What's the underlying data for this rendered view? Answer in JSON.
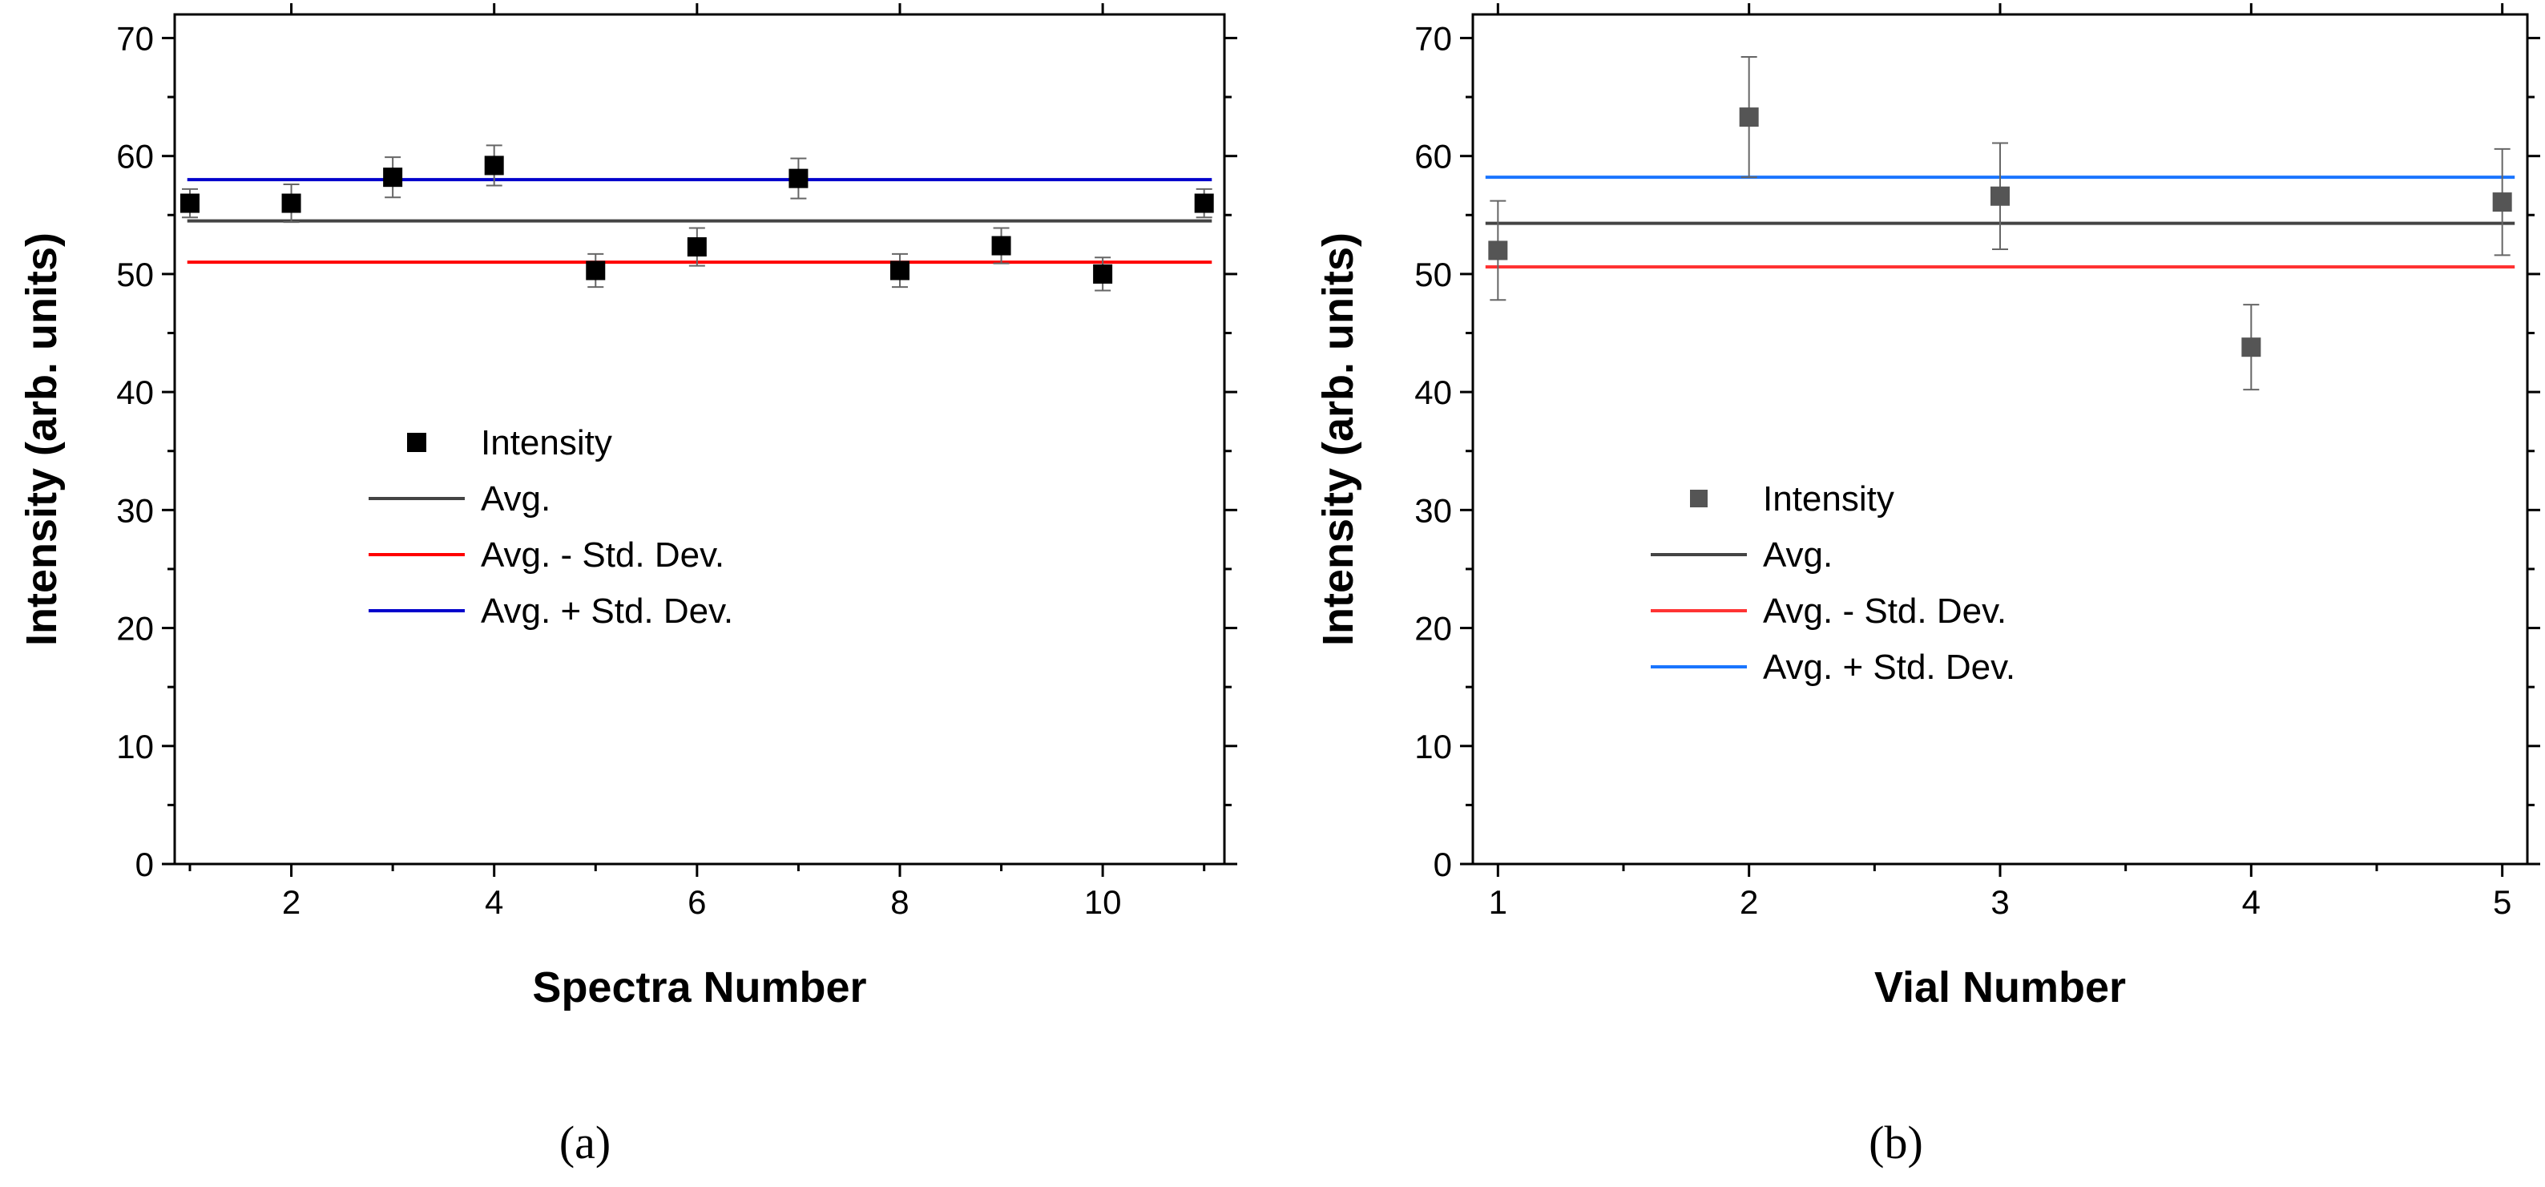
{
  "chart_data": [
    {
      "type": "scatter",
      "panel": "a",
      "caption": "(a)",
      "xlabel": "Spectra Number",
      "ylabel": "Intensity (arb. units)",
      "xlim": [
        0.85,
        11.2
      ],
      "ylim": [
        0,
        72
      ],
      "xticks": [
        2,
        4,
        6,
        8,
        10
      ],
      "xticklabels": [
        "2",
        "4",
        "6",
        "8",
        "10"
      ],
      "xminor": [
        1,
        3,
        5,
        7,
        9,
        11
      ],
      "yticks": [
        0,
        10,
        20,
        30,
        40,
        50,
        60,
        70
      ],
      "yticklabels": [
        "0",
        "10",
        "20",
        "30",
        "40",
        "50",
        "60",
        "70"
      ],
      "grid": false,
      "legend_position": "center-left",
      "series": [
        {
          "name": "Intensity",
          "kind": "points",
          "color": "#000000",
          "x": [
            1,
            2,
            3,
            4,
            5,
            6,
            7,
            8,
            9,
            10,
            11
          ],
          "y": [
            56.0,
            56.0,
            58.2,
            59.2,
            50.3,
            52.3,
            58.1,
            50.3,
            52.4,
            50.0,
            56.0
          ],
          "err": [
            1.2,
            1.6,
            1.7,
            1.7,
            1.4,
            1.6,
            1.7,
            1.4,
            1.5,
            1.4,
            1.2
          ]
        },
        {
          "name": "Avg.",
          "kind": "hline",
          "color": "#444444",
          "y": 54.5
        },
        {
          "name": "Avg. - Std. Dev.",
          "kind": "hline",
          "color": "#ff0000",
          "y": 51.0
        },
        {
          "name": "Avg. + Std. Dev.",
          "kind": "hline",
          "color": "#0000cc",
          "y": 58.0
        }
      ]
    },
    {
      "type": "scatter",
      "panel": "b",
      "caption": "(b)",
      "xlabel": "Vial Number",
      "ylabel": "Intensity (arb. units)",
      "xlim": [
        0.9,
        5.1
      ],
      "ylim": [
        0,
        72
      ],
      "xticks": [
        1,
        2,
        3,
        4,
        5
      ],
      "xticklabels": [
        "1",
        "2",
        "3",
        "4",
        "5"
      ],
      "xminor": [
        1.5,
        2.5,
        3.5,
        4.5
      ],
      "yticks": [
        0,
        10,
        20,
        30,
        40,
        50,
        60,
        70
      ],
      "yticklabels": [
        "0",
        "10",
        "20",
        "30",
        "40",
        "50",
        "60",
        "70"
      ],
      "grid": false,
      "legend_position": "center-left",
      "series": [
        {
          "name": "Intensity",
          "kind": "points",
          "color": "#555555",
          "x": [
            1,
            2,
            3,
            4,
            5
          ],
          "y": [
            52.0,
            63.3,
            56.6,
            43.8,
            56.1
          ],
          "err": [
            4.2,
            5.1,
            4.5,
            3.6,
            4.5
          ]
        },
        {
          "name": "Avg.",
          "kind": "hline",
          "color": "#444444",
          "y": 54.3
        },
        {
          "name": "Avg. - Std. Dev.",
          "kind": "hline",
          "color": "#ff3333",
          "y": 50.6
        },
        {
          "name": "Avg. + Std. Dev.",
          "kind": "hline",
          "color": "#1a75ff",
          "y": 58.2
        }
      ]
    }
  ]
}
